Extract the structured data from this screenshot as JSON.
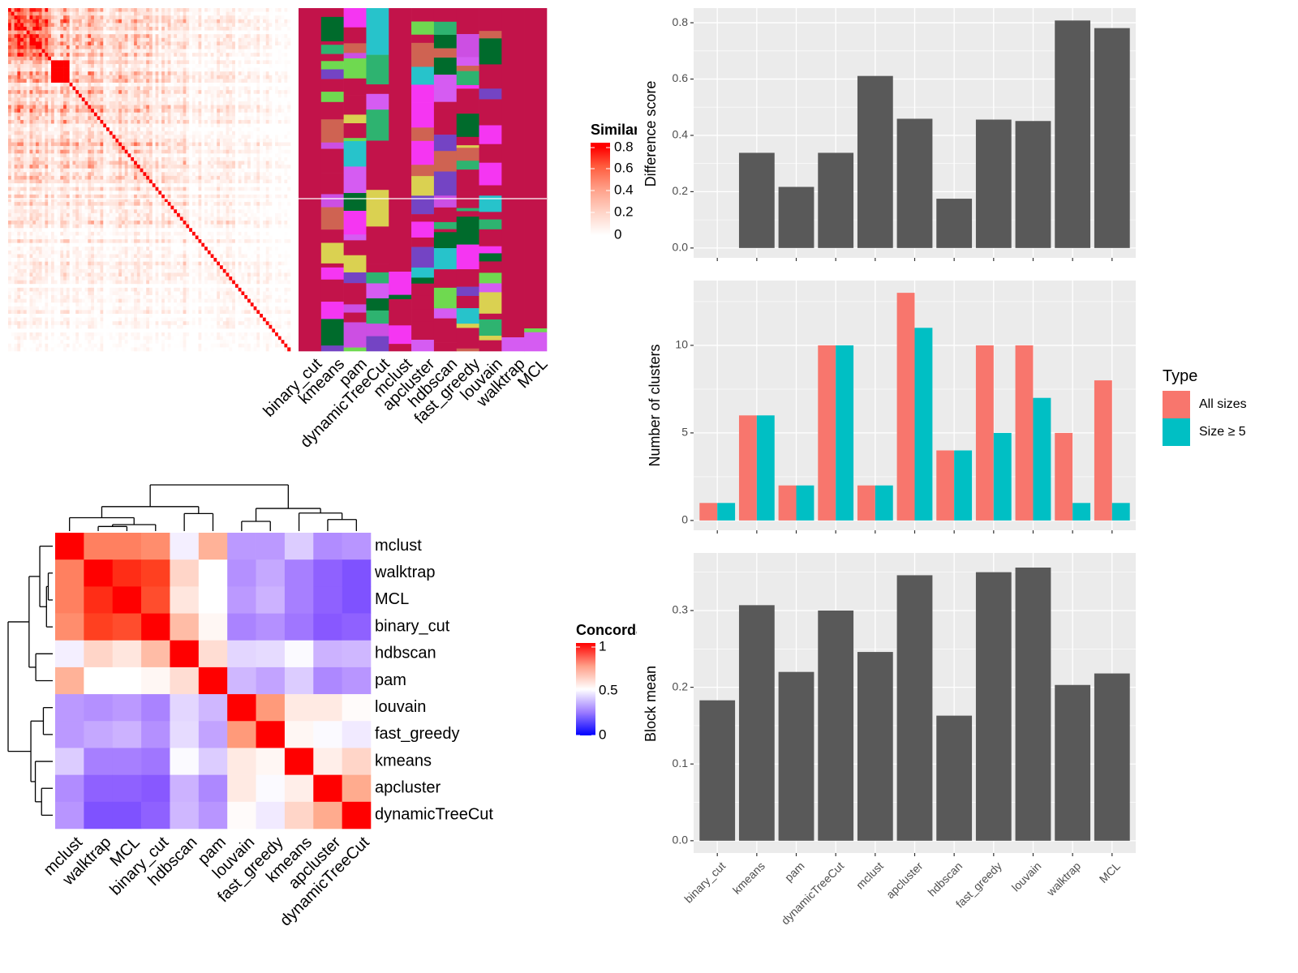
{
  "chart_data": [
    {
      "type": "heatmap",
      "legend": {
        "title": "Similarity",
        "ticks": [
          "0",
          "0.2",
          "0.4",
          "0.6",
          "0.8"
        ],
        "range": [
          0,
          0.8
        ],
        "colors": [
          "#FFFFFF",
          "#FF0000"
        ]
      }
    },
    {
      "type": "table",
      "columns": [
        "binary_cut",
        "kmeans",
        "pam",
        "dynamicTreeCut",
        "mclust",
        "apcluster",
        "hdbscan",
        "fast_greedy",
        "louvain",
        "walktrap",
        "MCL"
      ],
      "palette": [
        "#C2134A",
        "#CC4FE3",
        "#F536F2",
        "#CF6352",
        "#27C3CB",
        "#006B2C",
        "#DAD151",
        "#6FD950",
        "#2EB370",
        "#7444C4",
        "#D55CF2"
      ]
    },
    {
      "type": "heatmap",
      "labels": [
        "mclust",
        "walktrap",
        "MCL",
        "binary_cut",
        "hdbscan",
        "pam",
        "louvain",
        "fast_greedy",
        "kmeans",
        "apcluster",
        "dynamicTreeCut"
      ],
      "matrix": [
        [
          1.0,
          0.8,
          0.8,
          0.78,
          0.47,
          0.7,
          0.3,
          0.3,
          0.4,
          0.27,
          0.29
        ],
        [
          0.8,
          1.0,
          0.93,
          0.9,
          0.6,
          0.5,
          0.28,
          0.33,
          0.24,
          0.17,
          0.14
        ],
        [
          0.8,
          0.93,
          1.0,
          0.88,
          0.56,
          0.5,
          0.3,
          0.35,
          0.24,
          0.17,
          0.14
        ],
        [
          0.78,
          0.9,
          0.88,
          1.0,
          0.67,
          0.52,
          0.25,
          0.28,
          0.22,
          0.15,
          0.17
        ],
        [
          0.47,
          0.6,
          0.56,
          0.67,
          1.0,
          0.58,
          0.42,
          0.43,
          0.49,
          0.35,
          0.36
        ],
        [
          0.7,
          0.5,
          0.5,
          0.52,
          0.58,
          1.0,
          0.36,
          0.32,
          0.4,
          0.26,
          0.29
        ],
        [
          0.3,
          0.28,
          0.3,
          0.25,
          0.42,
          0.36,
          1.0,
          0.76,
          0.55,
          0.55,
          0.51
        ],
        [
          0.3,
          0.33,
          0.35,
          0.28,
          0.43,
          0.32,
          0.76,
          1.0,
          0.52,
          0.49,
          0.46
        ],
        [
          0.4,
          0.24,
          0.24,
          0.22,
          0.49,
          0.4,
          0.55,
          0.52,
          1.0,
          0.54,
          0.6
        ],
        [
          0.27,
          0.17,
          0.17,
          0.15,
          0.35,
          0.26,
          0.55,
          0.49,
          0.54,
          1.0,
          0.72
        ],
        [
          0.29,
          0.14,
          0.14,
          0.17,
          0.36,
          0.29,
          0.51,
          0.46,
          0.6,
          0.72,
          1.0
        ]
      ],
      "legend": {
        "title": "Concordance",
        "ticks": [
          "0",
          "0.5",
          "1"
        ],
        "range": [
          0,
          1
        ],
        "colors": [
          "#0000FF",
          "#FFFFFF",
          "#FF0000"
        ]
      }
    },
    {
      "type": "bar",
      "categories": [
        "binary_cut",
        "kmeans",
        "pam",
        "dynamicTreeCut",
        "mclust",
        "apcluster",
        "hdbscan",
        "fast_greedy",
        "louvain",
        "walktrap",
        "MCL"
      ],
      "values": [
        0.0,
        0.338,
        0.217,
        0.338,
        0.611,
        0.459,
        0.175,
        0.456,
        0.451,
        0.808,
        0.781
      ],
      "ylabel": "Difference score",
      "ylim": [
        -0.035,
        0.852
      ],
      "yticks": [
        "0.0",
        "0.2",
        "0.4",
        "0.6",
        "0.8"
      ],
      "color": "#595959"
    },
    {
      "type": "bar",
      "categories": [
        "binary_cut",
        "kmeans",
        "pam",
        "dynamicTreeCut",
        "mclust",
        "apcluster",
        "hdbscan",
        "fast_greedy",
        "louvain",
        "walktrap",
        "MCL"
      ],
      "series": [
        {
          "name": "All sizes",
          "values": [
            1,
            6,
            2,
            10,
            2,
            13,
            4,
            10,
            10,
            5,
            8
          ],
          "color": "#F8766D"
        },
        {
          "name": "Size ≥ 5",
          "values": [
            1,
            6,
            2,
            10,
            2,
            11,
            4,
            5,
            7,
            1,
            1
          ],
          "color": "#00BFC4"
        }
      ],
      "ylabel": "Number of clusters",
      "ylim": [
        -0.56,
        13.7
      ],
      "yticks": [
        "0",
        "5",
        "10"
      ],
      "legend": {
        "title": "Type",
        "position": "right"
      }
    },
    {
      "type": "bar",
      "categories": [
        "binary_cut",
        "kmeans",
        "pam",
        "dynamicTreeCut",
        "mclust",
        "apcluster",
        "hdbscan",
        "fast_greedy",
        "louvain",
        "walktrap",
        "MCL"
      ],
      "values": [
        0.183,
        0.307,
        0.22,
        0.3,
        0.246,
        0.346,
        0.163,
        0.35,
        0.356,
        0.203,
        0.218
      ],
      "ylabel": "Block mean",
      "ylim": [
        -0.016,
        0.375
      ],
      "yticks": [
        "0.0",
        "0.1",
        "0.2",
        "0.3"
      ],
      "color": "#595959"
    }
  ]
}
